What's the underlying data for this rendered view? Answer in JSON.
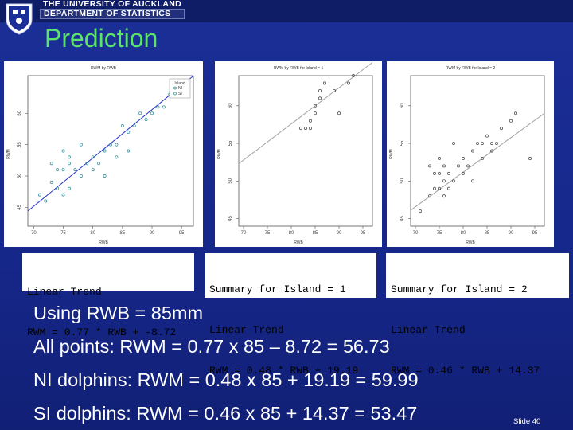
{
  "header": {
    "university": "THE UNIVERSITY OF AUCKLAND",
    "department": "DEPARTMENT OF STATISTICS"
  },
  "slide": {
    "title": "Prediction",
    "number": "Slide 40"
  },
  "plots": [
    {
      "title": "RWM by RWB",
      "xlabel": "RWB",
      "ylabel": "RWM",
      "xticks": [
        "70",
        "75",
        "80",
        "85",
        "90",
        "95"
      ],
      "yticks": [
        "45",
        "50",
        "55",
        "60"
      ],
      "xlim": [
        69,
        97
      ],
      "ylim": [
        42,
        66
      ],
      "legend": {
        "title": "Island",
        "items": [
          "NI",
          "SI"
        ]
      },
      "line": {
        "slope": 0.77,
        "intercept": -8.72,
        "color": "#2233cc"
      },
      "points": [
        [
          71,
          47
        ],
        [
          72,
          46
        ],
        [
          73,
          49
        ],
        [
          74,
          48
        ],
        [
          75,
          47
        ],
        [
          76,
          48
        ],
        [
          74,
          51
        ],
        [
          75,
          51
        ],
        [
          76,
          52
        ],
        [
          77,
          51
        ],
        [
          78,
          50
        ],
        [
          79,
          52
        ],
        [
          80,
          53
        ],
        [
          81,
          52
        ],
        [
          82,
          54
        ],
        [
          83,
          55
        ],
        [
          84,
          55
        ],
        [
          85,
          58
        ],
        [
          86,
          57
        ],
        [
          87,
          58
        ],
        [
          88,
          60
        ],
        [
          89,
          59
        ],
        [
          90,
          60
        ],
        [
          91,
          61
        ],
        [
          92,
          61
        ],
        [
          93,
          63
        ],
        [
          78,
          55
        ],
        [
          76,
          53
        ],
        [
          75,
          54
        ],
        [
          80,
          51
        ],
        [
          82,
          50
        ],
        [
          73,
          52
        ],
        [
          84,
          53
        ],
        [
          86,
          54
        ]
      ],
      "point_color": "#2e8f98"
    },
    {
      "title": "RWM by RWB for Island = 1",
      "xlabel": "RWB",
      "ylabel": "RWM",
      "xticks": [
        "70",
        "75",
        "80",
        "85",
        "90",
        "95"
      ],
      "yticks": [
        "45",
        "50",
        "55",
        "60"
      ],
      "xlim": [
        69,
        97
      ],
      "ylim": [
        44,
        64
      ],
      "line": {
        "slope": 0.48,
        "intercept": 19.19,
        "color": "#a0a0a0"
      },
      "points": [
        [
          82,
          57
        ],
        [
          83,
          57
        ],
        [
          84,
          58
        ],
        [
          85,
          59
        ],
        [
          86,
          61
        ],
        [
          86,
          62
        ],
        [
          87,
          63
        ],
        [
          89,
          62
        ],
        [
          90,
          59
        ],
        [
          92,
          63
        ],
        [
          93,
          64
        ],
        [
          84,
          57
        ],
        [
          85,
          60
        ]
      ],
      "point_color": "#444"
    },
    {
      "title": "RWM by RWB for Island = 2",
      "xlabel": "RWB",
      "ylabel": "RWM",
      "xticks": [
        "70",
        "75",
        "80",
        "85",
        "90",
        "95"
      ],
      "yticks": [
        "45",
        "50",
        "55",
        "60"
      ],
      "xlim": [
        69,
        97
      ],
      "ylim": [
        44,
        64
      ],
      "line": {
        "slope": 0.46,
        "intercept": 14.37,
        "color": "#a0a0a0"
      },
      "points": [
        [
          71,
          46
        ],
        [
          73,
          48
        ],
        [
          74,
          49
        ],
        [
          75,
          49
        ],
        [
          76,
          48
        ],
        [
          77,
          49
        ],
        [
          74,
          51
        ],
        [
          75,
          51
        ],
        [
          76,
          52
        ],
        [
          77,
          51
        ],
        [
          78,
          50
        ],
        [
          79,
          52
        ],
        [
          80,
          53
        ],
        [
          81,
          52
        ],
        [
          82,
          54
        ],
        [
          83,
          55
        ],
        [
          84,
          55
        ],
        [
          85,
          56
        ],
        [
          86,
          54
        ],
        [
          87,
          55
        ],
        [
          88,
          57
        ],
        [
          90,
          58
        ],
        [
          91,
          59
        ],
        [
          94,
          53
        ],
        [
          73,
          52
        ],
        [
          75,
          53
        ],
        [
          78,
          55
        ],
        [
          80,
          51
        ],
        [
          82,
          50
        ],
        [
          84,
          53
        ],
        [
          86,
          55
        ],
        [
          76,
          50
        ]
      ],
      "point_color": "#444"
    }
  ],
  "equations": [
    {
      "line1": "Linear Trend",
      "line2": "RWM = 0.77 * RWB + -8.72"
    },
    {
      "line1": "Summary for Island = 1",
      "line2": "Linear Trend",
      "line3": "RWM = 0.48 * RWB + 19.19"
    },
    {
      "line1": "Summary for Island = 2",
      "line2": "Linear Trend",
      "line3": "RWM = 0.46 * RWB + 14.37"
    }
  ],
  "body": {
    "l1": "Using RWB = 85mm",
    "l2": "All points: RWM = 0.77 x 85 – 8.72 = 56.73",
    "l3": "NI dolphins: RWM = 0.48 x 85 + 19.19 = 59.99",
    "l4": "SI dolphins: RWM = 0.46 x 85 + 14.37 = 53.47"
  }
}
